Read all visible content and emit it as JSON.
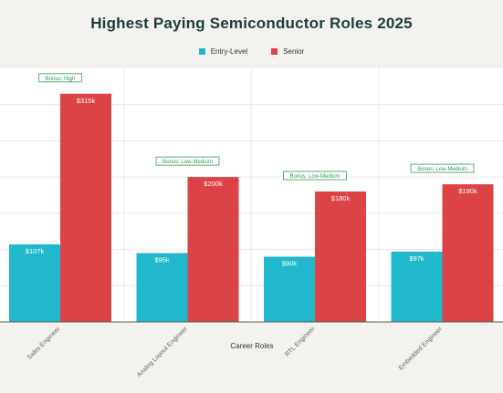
{
  "chart_data": {
    "type": "bar",
    "title": "Highest Paying Semiconductor Roles 2025",
    "xlabel": "Career Roles",
    "ylabel": "",
    "categories": [
      "Sales Engineer",
      "Analog Layout Engineer",
      "RTL Engineer",
      "Embedded Engineer"
    ],
    "series": [
      {
        "name": "Entry-Level",
        "values": [
          107,
          95,
          90,
          97
        ],
        "labels": [
          "$107k",
          "$95k",
          "$90k",
          "$97k"
        ]
      },
      {
        "name": "Senior",
        "values": [
          315,
          200,
          180,
          190
        ],
        "labels": [
          "$315k",
          "$200k",
          "$180k",
          "$190k"
        ]
      }
    ],
    "annotations": [
      "Bonus: High",
      "Bonus: Low-Medium",
      "Bonus: Low-Medium",
      "Bonus: Low-Medium"
    ],
    "ylim": [
      0,
      350
    ],
    "grid": true,
    "legend": "top-center"
  },
  "colors": {
    "entry": "#21b8cc",
    "senior": "#dc4347",
    "annotation": "#2e9a55",
    "title": "#1c3c3f"
  }
}
